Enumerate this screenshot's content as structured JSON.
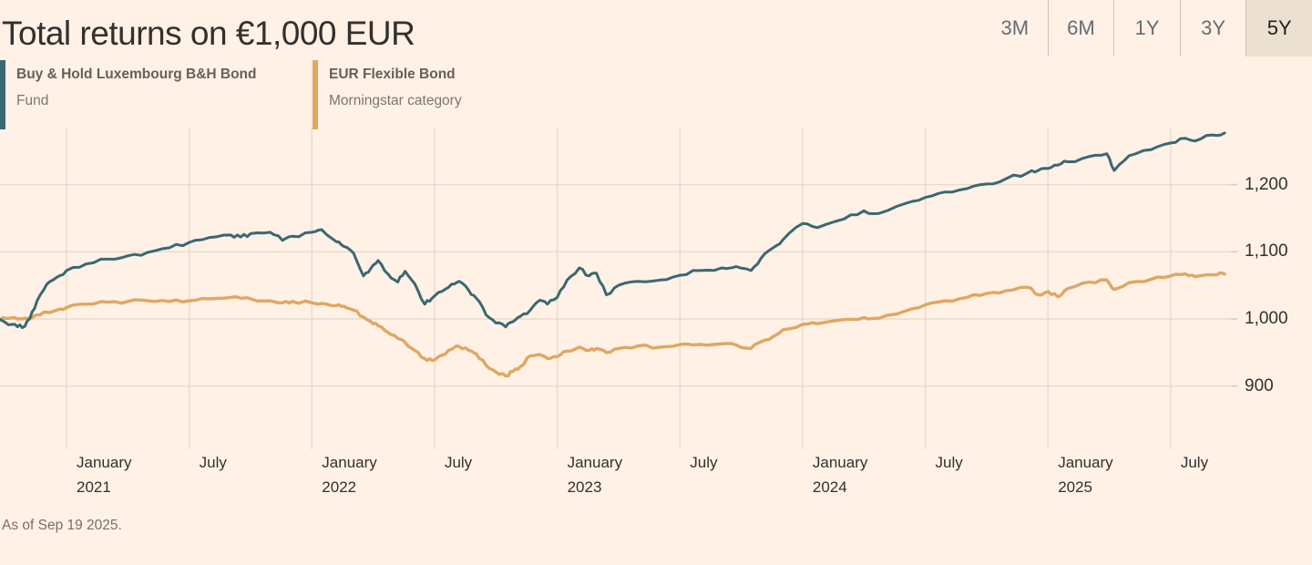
{
  "header": {
    "title": "Total returns on €1,000 EUR",
    "ranges": [
      {
        "label": "3M",
        "selected": false
      },
      {
        "label": "6M",
        "selected": false
      },
      {
        "label": "1Y",
        "selected": false
      },
      {
        "label": "3Y",
        "selected": false
      },
      {
        "label": "5Y",
        "selected": true
      }
    ]
  },
  "legend": [
    {
      "name": "Buy & Hold Luxembourg B&H Bond",
      "type": "Fund",
      "color": "#3a6872"
    },
    {
      "name": "EUR Flexible Bond",
      "type": "Morningstar category",
      "color": "#dfa763"
    }
  ],
  "footer": {
    "as_of": "As of Sep 19 2025."
  },
  "colors": {
    "background": "#fff1e5",
    "gridline": "#e8dbc9",
    "axis_tick": "#d8cbbb",
    "fund_line": "#3a6872",
    "category_line": "#dfa763",
    "text_dark": "#33302e",
    "text_gray": "#66605b",
    "selected_range_bg": "#ece1d1"
  },
  "chart_data": {
    "type": "line",
    "title": "Total returns on €1,000 EUR",
    "xlabel": "",
    "ylabel": "",
    "x_unit": "decimal_year",
    "xlim": [
      2020.72,
      2025.74
    ],
    "ylim": [
      815,
      1285
    ],
    "grid": true,
    "legend_position": "top-left",
    "as_of": "Sep 19 2025",
    "x": [
      2020.72,
      2020.75,
      2020.79,
      2020.82,
      2020.85,
      2020.88,
      2020.92,
      2020.96,
      2021.0,
      2021.08,
      2021.17,
      2021.25,
      2021.33,
      2021.42,
      2021.5,
      2021.58,
      2021.67,
      2021.71,
      2021.75,
      2021.83,
      2021.88,
      2021.92,
      2022.0,
      2022.04,
      2022.1,
      2022.13,
      2022.17,
      2022.21,
      2022.24,
      2022.27,
      2022.31,
      2022.35,
      2022.38,
      2022.42,
      2022.46,
      2022.49,
      2022.53,
      2022.57,
      2022.6,
      2022.64,
      2022.67,
      2022.71,
      2022.75,
      2022.79,
      2022.82,
      2022.85,
      2022.89,
      2022.93,
      2022.96,
      2023.0,
      2023.04,
      2023.09,
      2023.13,
      2023.16,
      2023.2,
      2023.25,
      2023.33,
      2023.42,
      2023.5,
      2023.58,
      2023.67,
      2023.73,
      2023.79,
      2023.83,
      2023.88,
      2023.92,
      2024.0,
      2024.06,
      2024.17,
      2024.25,
      2024.31,
      2024.42,
      2024.5,
      2024.58,
      2024.67,
      2024.75,
      2024.83,
      2024.92,
      2024.96,
      2025.0,
      2025.04,
      2025.08,
      2025.17,
      2025.24,
      2025.27,
      2025.33,
      2025.42,
      2025.5,
      2025.56,
      2025.6,
      2025.67,
      2025.72
    ],
    "series": [
      {
        "name": "Buy & Hold Luxembourg B&H Bond (Fund)",
        "color": "#3a6872",
        "values": [
          1000,
          995,
          992,
          987,
          1000,
          1027,
          1052,
          1062,
          1072,
          1082,
          1089,
          1094,
          1099,
          1106,
          1114,
          1121,
          1125,
          1122,
          1127,
          1129,
          1117,
          1123,
          1129,
          1133,
          1115,
          1108,
          1098,
          1064,
          1075,
          1087,
          1067,
          1055,
          1071,
          1052,
          1022,
          1031,
          1041,
          1052,
          1056,
          1042,
          1031,
          1006,
          994,
          988,
          996,
          1004,
          1013,
          1028,
          1022,
          1032,
          1058,
          1076,
          1064,
          1068,
          1036,
          1050,
          1056,
          1058,
          1065,
          1072,
          1076,
          1078,
          1072,
          1090,
          1106,
          1118,
          1142,
          1136,
          1149,
          1161,
          1157,
          1172,
          1181,
          1189,
          1194,
          1201,
          1209,
          1218,
          1221,
          1224,
          1229,
          1234,
          1242,
          1246,
          1221,
          1243,
          1252,
          1262,
          1269,
          1265,
          1274,
          1277
        ]
      },
      {
        "name": "EUR Flexible Bond (Morningstar category)",
        "color": "#dfa763",
        "values": [
          1000,
          1001,
          1002,
          1000,
          1002,
          1006,
          1010,
          1013,
          1017,
          1022,
          1025,
          1026,
          1027,
          1026,
          1027,
          1030,
          1032,
          1031,
          1030,
          1027,
          1024,
          1026,
          1024,
          1023,
          1020,
          1019,
          1013,
          1003,
          996,
          990,
          980,
          971,
          965,
          953,
          941,
          938,
          946,
          955,
          959,
          953,
          948,
          931,
          921,
          915,
          922,
          929,
          945,
          947,
          941,
          944,
          952,
          958,
          953,
          956,
          950,
          956,
          960,
          958,
          962,
          962,
          963,
          961,
          956,
          966,
          974,
          984,
          992,
          993,
          999,
          1002,
          1001,
          1012,
          1021,
          1027,
          1032,
          1038,
          1042,
          1047,
          1036,
          1041,
          1033,
          1045,
          1055,
          1058,
          1044,
          1054,
          1059,
          1064,
          1067,
          1063,
          1066,
          1067
        ]
      }
    ],
    "x_ticks": [
      {
        "x": 2021.0,
        "line1": "January",
        "line2": "2021"
      },
      {
        "x": 2021.5,
        "line1": "July",
        "line2": ""
      },
      {
        "x": 2022.0,
        "line1": "January",
        "line2": "2022"
      },
      {
        "x": 2022.5,
        "line1": "July",
        "line2": ""
      },
      {
        "x": 2023.0,
        "line1": "January",
        "line2": "2023"
      },
      {
        "x": 2023.5,
        "line1": "July",
        "line2": ""
      },
      {
        "x": 2024.0,
        "line1": "January",
        "line2": "2024"
      },
      {
        "x": 2024.5,
        "line1": "July",
        "line2": ""
      },
      {
        "x": 2025.0,
        "line1": "January",
        "line2": "2025"
      },
      {
        "x": 2025.5,
        "line1": "July",
        "line2": ""
      }
    ],
    "y_ticks": [
      {
        "value": 900,
        "label": "900"
      },
      {
        "value": 1000,
        "label": "1,000"
      },
      {
        "value": 1100,
        "label": "1,100"
      },
      {
        "value": 1200,
        "label": "1,200"
      }
    ]
  }
}
